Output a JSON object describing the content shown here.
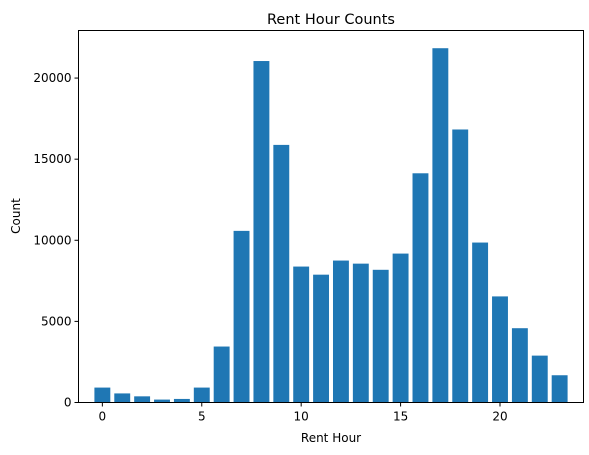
{
  "chart_data": {
    "type": "bar",
    "title": "Rent Hour Counts",
    "xlabel": "Rent Hour",
    "ylabel": "Count",
    "x": [
      0,
      1,
      2,
      3,
      4,
      5,
      6,
      7,
      8,
      9,
      10,
      11,
      12,
      13,
      14,
      15,
      16,
      17,
      18,
      19,
      20,
      21,
      22,
      23
    ],
    "values": [
      920,
      560,
      380,
      180,
      220,
      920,
      3450,
      10580,
      21050,
      15880,
      8380,
      7880,
      8750,
      8560,
      8180,
      9180,
      14130,
      21840,
      16830,
      9860,
      6540,
      4580,
      2890,
      1680
    ],
    "xlim": [
      -1.2,
      24.2
    ],
    "ylim": [
      0,
      22932
    ],
    "xticks": [
      0,
      5,
      10,
      15,
      20
    ],
    "yticks": [
      0,
      5000,
      10000,
      15000,
      20000
    ],
    "bar_color": "#1f77b4",
    "grid": false,
    "legend": "none"
  }
}
